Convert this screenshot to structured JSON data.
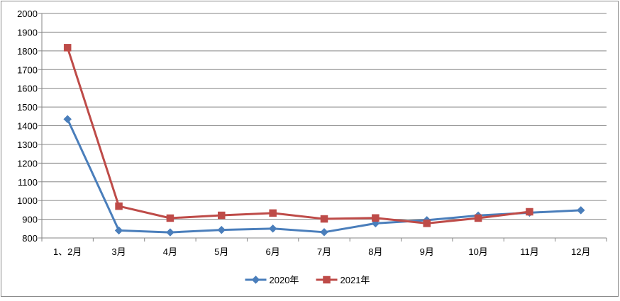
{
  "chart_data": {
    "type": "line",
    "title": "",
    "xlabel": "",
    "ylabel": "",
    "categories": [
      "1、2月",
      "3月",
      "4月",
      "5月",
      "6月",
      "7月",
      "8月",
      "9月",
      "10月",
      "11月",
      "12月"
    ],
    "ylim": [
      800,
      2000
    ],
    "yticks": [
      800,
      900,
      1000,
      1100,
      1200,
      1300,
      1400,
      1500,
      1600,
      1700,
      1800,
      1900,
      2000
    ],
    "grid": true,
    "legend": "bottom",
    "series": [
      {
        "name": "2020年",
        "color": "#4a7ebb",
        "marker": "diamond",
        "values": [
          1435,
          840,
          830,
          843,
          850,
          831,
          878,
          895,
          920,
          935,
          948
        ]
      },
      {
        "name": "2021年",
        "color": "#be4b48",
        "marker": "square",
        "values": [
          1817,
          970,
          906,
          921,
          933,
          902,
          907,
          878,
          906,
          940,
          null
        ]
      }
    ]
  }
}
